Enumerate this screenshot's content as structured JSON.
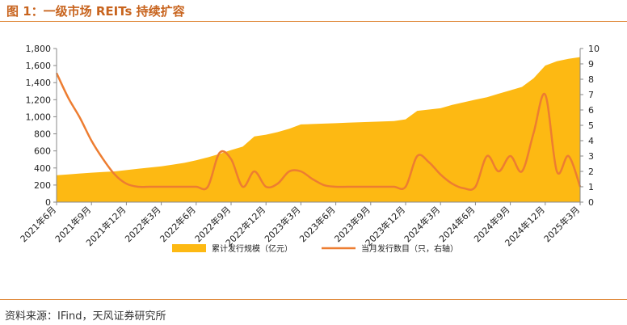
{
  "title": "图 1：一级市场 REITs 持续扩容",
  "source": "资料来源：IFind，天风证券研究所",
  "colors": {
    "area": "#FDB913",
    "line": "#ED7D31",
    "accent": "#c8641e"
  },
  "chart_data": {
    "type": "area",
    "categories": [
      "2021年6月",
      "2021年7月",
      "2021年8月",
      "2021年9月",
      "2021年10月",
      "2021年11月",
      "2021年12月",
      "2022年1月",
      "2022年2月",
      "2022年3月",
      "2022年4月",
      "2022年5月",
      "2022年6月",
      "2022年7月",
      "2022年8月",
      "2022年9月",
      "2022年10月",
      "2022年11月",
      "2022年12月",
      "2023年1月",
      "2023年2月",
      "2023年3月",
      "2023年4月",
      "2023年5月",
      "2023年6月",
      "2023年7月",
      "2023年8月",
      "2023年9月",
      "2023年10月",
      "2023年11月",
      "2023年12月",
      "2024年1月",
      "2024年2月",
      "2024年3月",
      "2024年4月",
      "2024年5月",
      "2024年6月",
      "2024年7月",
      "2024年8月",
      "2024年9月",
      "2024年10月",
      "2024年11月",
      "2024年12月",
      "2025年1月",
      "2025年2月",
      "2025年3月"
    ],
    "x_tick_labels": [
      "2021年6月",
      "2021年9月",
      "2021年12月",
      "2022年3月",
      "2022年6月",
      "2022年9月",
      "2022年12月",
      "2023年3月",
      "2023年6月",
      "2023年9月",
      "2023年12月",
      "2024年3月",
      "2024年6月",
      "2024年9月",
      "2024年12月",
      "2025年3月"
    ],
    "series": [
      {
        "name": "累计发行规模（亿元）",
        "axis": "left",
        "type": "area",
        "values": [
          315,
          325,
          335,
          345,
          352,
          360,
          375,
          390,
          405,
          420,
          440,
          460,
          490,
          525,
          565,
          610,
          650,
          770,
          790,
          820,
          860,
          910,
          915,
          920,
          925,
          930,
          935,
          940,
          945,
          950,
          970,
          1070,
          1085,
          1100,
          1140,
          1170,
          1200,
          1230,
          1270,
          1310,
          1350,
          1450,
          1600,
          1650,
          1680,
          1700
        ]
      },
      {
        "name": "当月发行数目（只，右轴）",
        "axis": "right",
        "type": "line",
        "values": [
          8.4,
          6.8,
          5.5,
          4.0,
          2.8,
          1.8,
          1.2,
          1.0,
          1.0,
          1.0,
          1.0,
          1.0,
          1.0,
          1.0,
          3.2,
          2.8,
          1.0,
          2.0,
          1.0,
          1.2,
          2.0,
          2.0,
          1.5,
          1.1,
          1.0,
          1.0,
          1.0,
          1.0,
          1.0,
          1.0,
          1.0,
          3.0,
          2.6,
          1.8,
          1.2,
          0.9,
          1.0,
          3.0,
          2.0,
          3.0,
          2.0,
          4.5,
          7.0,
          2.0,
          3.0,
          1.0
        ]
      }
    ],
    "left_axis": {
      "ylim": [
        0,
        1800
      ],
      "ticks": [
        "0",
        "200",
        "400",
        "600",
        "800",
        "1,000",
        "1,200",
        "1,400",
        "1,600",
        "1,800"
      ]
    },
    "right_axis": {
      "ylim": [
        0,
        10
      ],
      "ticks": [
        "0",
        "1",
        "2",
        "3",
        "4",
        "5",
        "6",
        "7",
        "8",
        "9",
        "10"
      ]
    },
    "grid": false,
    "legend_position": "bottom"
  }
}
